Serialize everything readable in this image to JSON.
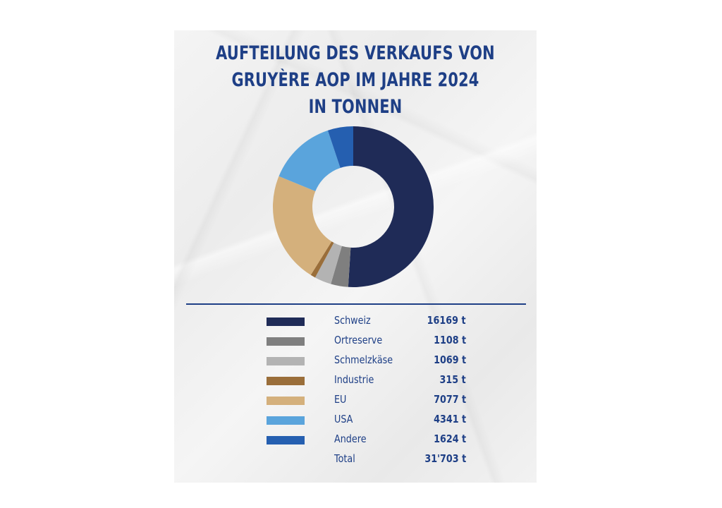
{
  "title_lines": [
    "AUFTEILUNG DES VERKAUFS VON",
    "GRUYÈRE AOP IM JAHRE 2024",
    "IN TONNEN"
  ],
  "chart_data": {
    "type": "pie",
    "variant": "donut",
    "title": "AUFTEILUNG DES VERKAUFS VON GRUYÈRE AOP IM JAHRE 2024 IN TONNEN",
    "unit": "t",
    "categories": [
      "Schweiz",
      "Ortreserve",
      "Schmelzkäse",
      "Industrie",
      "EU",
      "USA",
      "Andere"
    ],
    "values": [
      16169,
      1108,
      1069,
      315,
      7077,
      4341,
      1624
    ],
    "value_labels": [
      "16169 t",
      "1108 t",
      "1069 t",
      "315 t",
      "7077 t",
      "4341 t",
      "1624 t"
    ],
    "colors": [
      "#1f2b57",
      "#7f7f7f",
      "#b3b3b3",
      "#9a6e3a",
      "#d4b07c",
      "#5aa4dc",
      "#255fb0"
    ],
    "total_label": "Total",
    "total_value": "31'703 t",
    "legend_position": "bottom"
  }
}
